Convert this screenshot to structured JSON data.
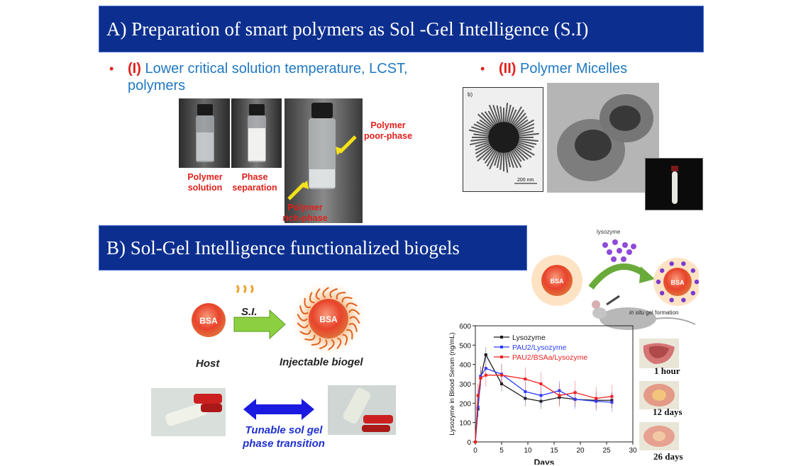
{
  "banner_a": {
    "title": "A) Preparation of smart polymers as Sol -Gel Intelligence (S.I)"
  },
  "banner_b": {
    "title": "B) Sol-Gel Intelligence functionalized biogels"
  },
  "bullet_1": {
    "marker": "•",
    "num": "(I)",
    "text": "Lower critical solution temperature, LCST, polymers"
  },
  "bullet_2": {
    "marker": "•",
    "num": "(II)",
    "text": "Polymer Micelles"
  },
  "vials": {
    "label_solution": "Polymer solution",
    "label_separation": "Phase separation",
    "label_poor": "Polymer poor-phase",
    "label_rich": "Polymer rich-phase"
  },
  "micelle": {
    "panel_label": "b)",
    "scale": "200 nm"
  },
  "schematic": {
    "host_bubble": "BSA",
    "host_label": "Host",
    "si_label": "S.I.",
    "biogel_bubble": "BSA",
    "biogel_label": "Injectable biogel",
    "tunable_line1": "Tunable sol gel",
    "tunable_line2": "phase transition"
  },
  "lysozyme_scheme": {
    "lysozyme_label": "lysozyme",
    "bsa_left": "BSA",
    "bsa_right": "BSA",
    "gel_label_italic": "in situ",
    "gel_label_rest": "gel formation"
  },
  "tissue_labels": [
    "1 hour",
    "12 days",
    "26 days"
  ],
  "chart_data": {
    "type": "line",
    "xlabel": "Days",
    "ylabel": "Lysozyme in Blood Serum (ng/mL)",
    "xlim": [
      0,
      30
    ],
    "ylim": [
      0,
      600
    ],
    "xticks": [
      0,
      5,
      10,
      15,
      20,
      25,
      30
    ],
    "yticks": [
      0,
      100,
      200,
      300,
      400,
      500,
      600
    ],
    "legend_position": "top-left",
    "series": [
      {
        "name": "Lysozyme",
        "color": "#1a1a1a",
        "x": [
          0,
          0.5,
          1,
          2,
          5,
          9.5,
          12.5,
          16,
          19,
          23,
          26
        ],
        "y": [
          0,
          170,
          330,
          450,
          300,
          225,
          210,
          230,
          220,
          215,
          215
        ]
      },
      {
        "name": "PAU2/Lysozyme",
        "color": "#2a3cff",
        "x": [
          0,
          0.5,
          1,
          2,
          5,
          9.5,
          12.5,
          16,
          19,
          23,
          26
        ],
        "y": [
          0,
          180,
          340,
          380,
          350,
          260,
          240,
          265,
          220,
          210,
          205
        ]
      },
      {
        "name": "PAU2/BSAa/Lysozyme",
        "color": "#ee2222",
        "x": [
          0,
          0.5,
          1,
          2,
          5,
          9.5,
          12.5,
          16,
          19,
          23,
          26
        ],
        "y": [
          0,
          240,
          330,
          345,
          345,
          325,
          300,
          240,
          255,
          225,
          235
        ]
      }
    ]
  }
}
